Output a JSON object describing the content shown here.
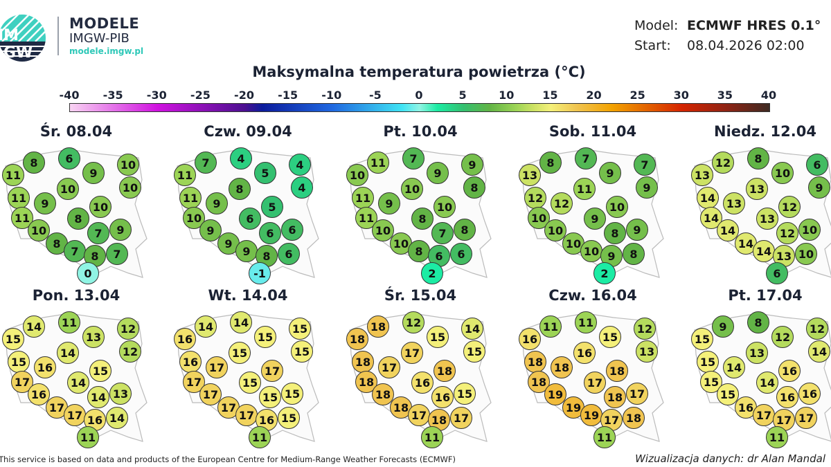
{
  "brand": {
    "title": "MODELE",
    "subtitle": "IMGW-PIB",
    "url": "modele.imgw.pl",
    "logo_text": "IMGW"
  },
  "meta": {
    "model_label": "Model:",
    "model_value": "ECMWF HRES 0.1°",
    "start_label": "Start:",
    "start_value": "08.04.2026 02:00"
  },
  "title": "Maksymalna temperatura powietrza (°C)",
  "colorbar": {
    "ticks": [
      "-40",
      "-35",
      "-30",
      "-25",
      "-20",
      "-15",
      "-10",
      "-5",
      "0",
      "5",
      "10",
      "15",
      "20",
      "25",
      "30",
      "35",
      "40"
    ],
    "range": [
      -40,
      40
    ],
    "stops": [
      {
        "v": -40,
        "c": "#f8d4f2"
      },
      {
        "v": -30,
        "c": "#d012e0"
      },
      {
        "v": -20,
        "c": "#4c1090"
      },
      {
        "v": -18,
        "c": "#0c1c9c"
      },
      {
        "v": -10,
        "c": "#2068e0"
      },
      {
        "v": -2,
        "c": "#40e4f4"
      },
      {
        "v": 0,
        "c": "#90f4e4"
      },
      {
        "v": 2,
        "c": "#1ceca4"
      },
      {
        "v": 5,
        "c": "#34c070"
      },
      {
        "v": 8,
        "c": "#62b446"
      },
      {
        "v": 11,
        "c": "#9cd456"
      },
      {
        "v": 13,
        "c": "#cce264"
      },
      {
        "v": 15,
        "c": "#f4f07a"
      },
      {
        "v": 18,
        "c": "#f0c450"
      },
      {
        "v": 22,
        "c": "#f2a200"
      },
      {
        "v": 30,
        "c": "#d42400"
      },
      {
        "v": 35,
        "c": "#902414"
      },
      {
        "v": 40,
        "c": "#3e2a22"
      }
    ]
  },
  "days": [
    {
      "label": "Śr. 08.04",
      "temps": [
        8,
        6,
        9,
        10,
        11,
        10,
        10,
        11,
        9,
        10,
        11,
        8,
        10,
        7,
        9,
        8,
        7,
        8,
        7,
        0
      ]
    },
    {
      "label": "Czw. 09.04",
      "temps": [
        7,
        4,
        5,
        4,
        11,
        8,
        4,
        11,
        9,
        5,
        10,
        6,
        9,
        6,
        6,
        9,
        9,
        8,
        6,
        -1
      ]
    },
    {
      "label": "Pt. 10.04",
      "temps": [
        11,
        7,
        9,
        9,
        10,
        10,
        8,
        11,
        9,
        10,
        11,
        8,
        10,
        7,
        8,
        10,
        8,
        6,
        6,
        2
      ]
    },
    {
      "label": "Sob. 11.04",
      "temps": [
        8,
        7,
        9,
        7,
        13,
        11,
        9,
        12,
        12,
        10,
        10,
        9,
        10,
        8,
        9,
        10,
        10,
        9,
        8,
        2
      ]
    },
    {
      "label": "Niedz. 12.04",
      "temps": [
        12,
        8,
        10,
        6,
        13,
        13,
        9,
        14,
        13,
        12,
        14,
        13,
        14,
        12,
        10,
        14,
        14,
        13,
        10,
        6
      ]
    },
    {
      "label": "Pon. 13.04",
      "temps": [
        14,
        11,
        13,
        12,
        15,
        14,
        12,
        15,
        16,
        15,
        17,
        14,
        16,
        14,
        13,
        17,
        17,
        16,
        14,
        11
      ]
    },
    {
      "label": "Wt. 14.04",
      "temps": [
        14,
        14,
        15,
        15,
        16,
        15,
        15,
        16,
        17,
        17,
        17,
        15,
        17,
        15,
        15,
        17,
        17,
        16,
        15,
        11
      ]
    },
    {
      "label": "Śr. 15.04",
      "temps": [
        18,
        12,
        15,
        14,
        18,
        17,
        15,
        18,
        17,
        18,
        18,
        16,
        18,
        16,
        15,
        18,
        17,
        18,
        17,
        11
      ]
    },
    {
      "label": "Czw. 16.04",
      "temps": [
        11,
        11,
        15,
        12,
        16,
        16,
        13,
        18,
        18,
        18,
        18,
        17,
        19,
        18,
        17,
        19,
        19,
        17,
        18,
        11
      ]
    },
    {
      "label": "Pt. 17.04",
      "temps": [
        9,
        8,
        12,
        12,
        15,
        13,
        14,
        15,
        14,
        16,
        15,
        14,
        15,
        16,
        16,
        16,
        17,
        17,
        17,
        11
      ]
    }
  ],
  "footer": {
    "attribution": "This service is based on data and products of the European Centre for Medium-Range Weather Forecasts (ECMWF)",
    "credit": "Wizualizacja danych: dr Alan Mandal"
  }
}
